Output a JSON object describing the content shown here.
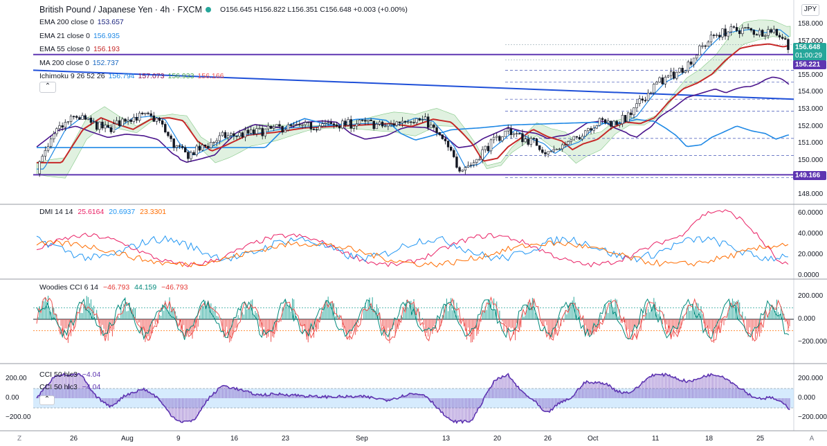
{
  "title": {
    "symbol": "British Pound / Japanese Yen · 4h · FXCM",
    "ohlc": "O156.645 H156.822 L156.351 C156.648 +0.003 (+0.00%)"
  },
  "currency_button": "JPY",
  "indicators": [
    {
      "label": "EMA 200 close 0",
      "value": "153.657",
      "color": "#1a237e"
    },
    {
      "label": "EMA 21 close 0",
      "value": "156.935",
      "color": "#1e88e5"
    },
    {
      "label": "EMA 55 close 0",
      "value": "156.193",
      "color": "#c62828"
    },
    {
      "label": "MA 200 close 0",
      "value": "152.737",
      "color": "#1565c0"
    }
  ],
  "ichimoku": {
    "label": "Ichimoku 9 26 52 26",
    "values": [
      {
        "v": "156.794",
        "color": "#1e88e5"
      },
      {
        "v": "157.073",
        "color": "#880e4f"
      },
      {
        "v": "156.933",
        "color": "#43a047"
      },
      {
        "v": "156.166",
        "color": "#ef5350"
      }
    ]
  },
  "price_axis": [
    "158.000",
    "157.000",
    "156.000",
    "155.000",
    "154.000",
    "153.000",
    "152.000",
    "151.000",
    "150.000",
    "149.000",
    "148.000"
  ],
  "price_tags": {
    "last": "156.648",
    "countdown": "01:00:29",
    "level_high": "156.221",
    "level_low": "149.166"
  },
  "dmi": {
    "label": "DMI 14 14",
    "values": [
      {
        "v": "25.6164",
        "color": "#e91e63"
      },
      {
        "v": "20.6937",
        "color": "#2196f3"
      },
      {
        "v": "23.3301",
        "color": "#ff6d00"
      }
    ],
    "axis": [
      "60.0000",
      "40.0000",
      "20.0000",
      "0.0000"
    ]
  },
  "woodies": {
    "label": "Woodies CCI 6 14",
    "values": [
      {
        "v": "−46.793",
        "color": "#e53935"
      },
      {
        "v": "44.159",
        "color": "#00897b"
      },
      {
        "v": "−46.793",
        "color": "#e53935"
      }
    ],
    "axis": [
      "200.000",
      "0.000",
      "−200.000"
    ]
  },
  "cci": {
    "label1": "CCI 50 hlc3",
    "value1": "−4.04",
    "label2": "CCI 50 hlc3",
    "value2": "−4.04",
    "axis_right": [
      "200.000",
      "0.000",
      "−200.000"
    ],
    "axis_left": [
      "200.00",
      "0.00",
      "−200.00"
    ]
  },
  "time_axis": [
    "26",
    "Aug",
    "9",
    "16",
    "23",
    "Sep",
    "13",
    "20",
    "26",
    "Oct",
    "11",
    "18",
    "25"
  ],
  "corner_left": "Z",
  "corner_right": "A",
  "colors": {
    "up": "#26a69a",
    "down": "#ef5350",
    "ema200": "#4a148c",
    "ema21": "#1e88e5",
    "ema55": "#c62828",
    "ma200": "#1e88e5",
    "trendline": "#1e4fd8",
    "support": "#5e35b1"
  }
}
